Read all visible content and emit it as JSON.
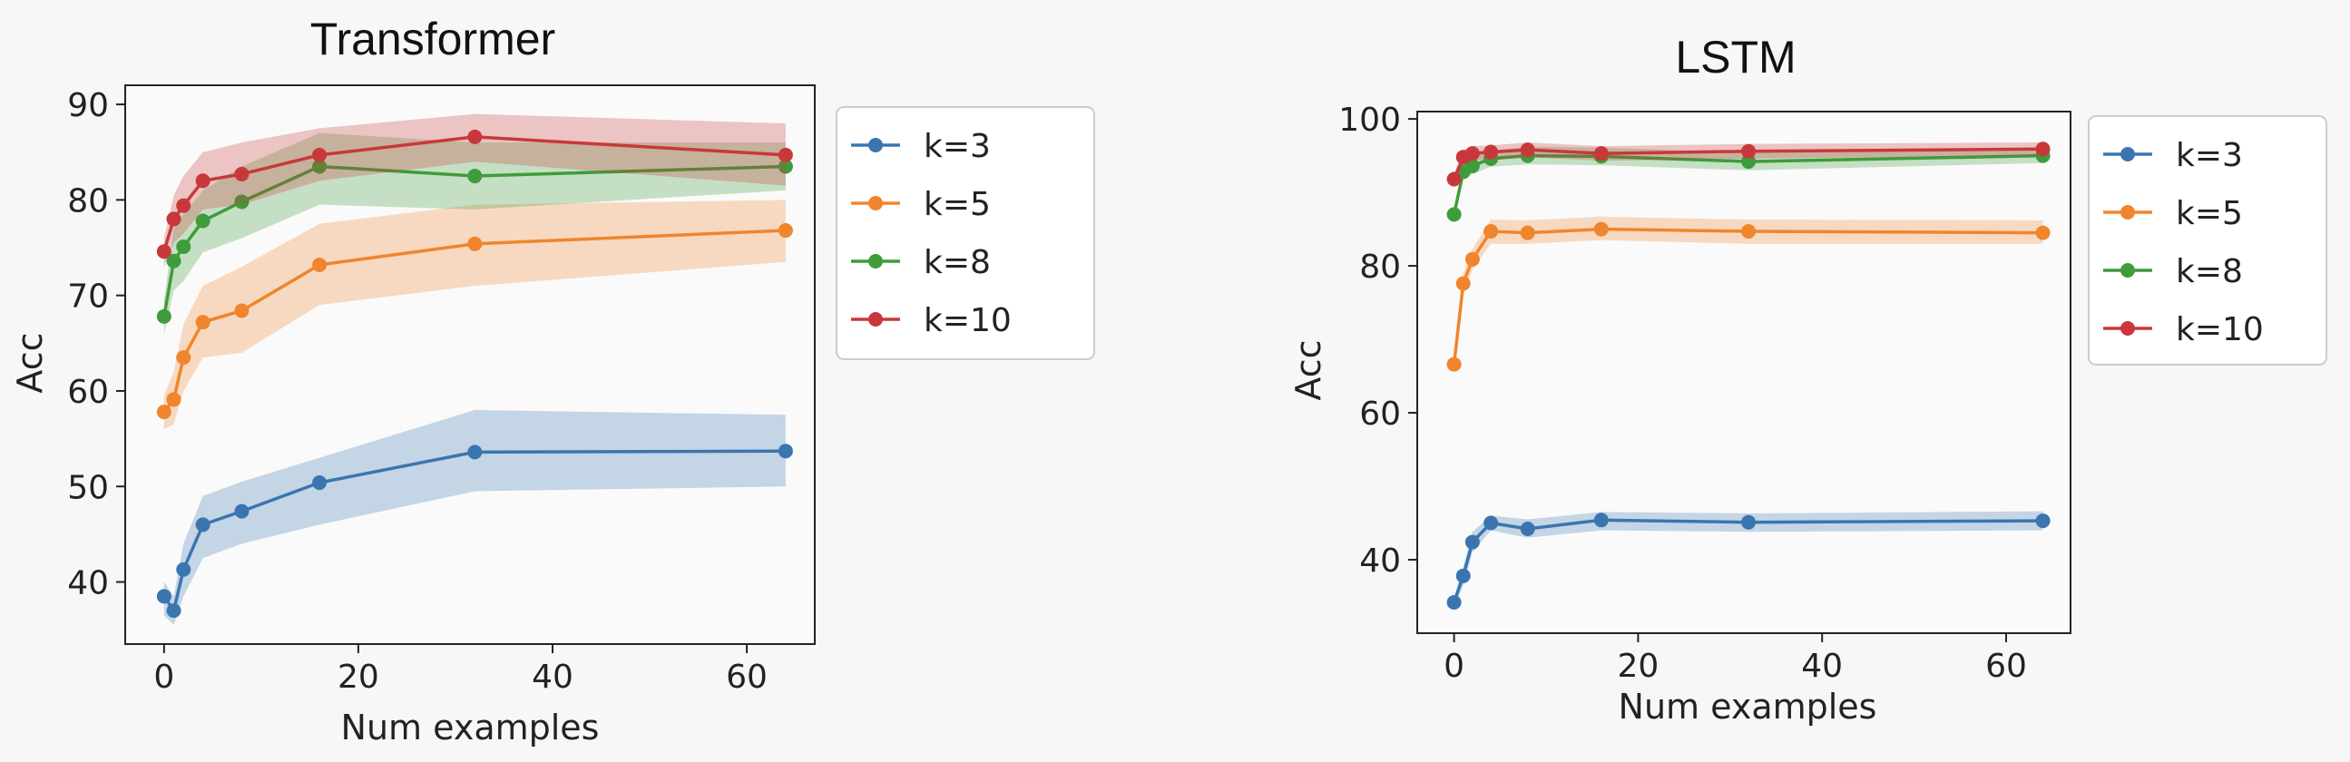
{
  "chart_data": [
    {
      "type": "line",
      "title": "Transformer",
      "xlabel": "Num examples",
      "ylabel": "Acc",
      "xlim": [
        -4,
        67
      ],
      "ylim": [
        33.5,
        92
      ],
      "xticks": [
        0,
        20,
        40,
        60
      ],
      "yticks": [
        40,
        50,
        60,
        70,
        80,
        90
      ],
      "legend": "outside-right",
      "grid": false,
      "x": [
        0,
        1,
        2,
        4,
        8,
        16,
        32,
        64
      ],
      "series": [
        {
          "name": "k=3",
          "color": "#3a75b0",
          "values": [
            38.5,
            37.0,
            41.3,
            46.0,
            47.4,
            50.4,
            53.6,
            53.7
          ],
          "lower": [
            36.5,
            35.5,
            38.5,
            42.5,
            44.0,
            46.0,
            49.5,
            50.0
          ],
          "upper": [
            40.0,
            38.5,
            44.0,
            49.0,
            50.5,
            53.0,
            58.0,
            57.5
          ]
        },
        {
          "name": "k=5",
          "color": "#f0852d",
          "values": [
            57.8,
            59.1,
            63.5,
            67.2,
            68.4,
            73.2,
            75.4,
            76.8
          ],
          "lower": [
            56.0,
            56.5,
            60.0,
            63.5,
            64.0,
            69.0,
            71.0,
            73.5
          ],
          "upper": [
            59.5,
            62.0,
            67.0,
            71.0,
            73.0,
            77.5,
            79.5,
            80.0
          ]
        },
        {
          "name": "k=8",
          "color": "#3e9c3a",
          "values": [
            67.8,
            73.6,
            75.1,
            77.8,
            79.8,
            83.5,
            82.5,
            83.5
          ],
          "lower": [
            66.0,
            70.5,
            71.5,
            74.5,
            76.0,
            79.5,
            79.0,
            81.0
          ],
          "upper": [
            69.5,
            77.0,
            78.5,
            81.0,
            83.5,
            87.0,
            86.0,
            86.0
          ]
        },
        {
          "name": "k=10",
          "color": "#c8383a",
          "values": [
            74.6,
            78.0,
            79.4,
            82.0,
            82.7,
            84.7,
            86.6,
            84.7
          ],
          "lower": [
            73.0,
            75.5,
            76.5,
            79.0,
            79.5,
            82.0,
            84.0,
            81.5
          ],
          "upper": [
            76.0,
            80.5,
            82.5,
            85.0,
            86.0,
            87.5,
            89.0,
            88.0
          ]
        }
      ]
    },
    {
      "type": "line",
      "title": "LSTM",
      "xlabel": "Num examples",
      "ylabel": "Acc",
      "xlim": [
        -4,
        67
      ],
      "ylim": [
        30,
        101
      ],
      "xticks": [
        0,
        20,
        40,
        60
      ],
      "yticks": [
        40,
        60,
        80,
        100
      ],
      "legend": "outside-right",
      "grid": false,
      "x": [
        0,
        1,
        2,
        4,
        8,
        16,
        32,
        64
      ],
      "series": [
        {
          "name": "k=3",
          "color": "#3a75b0",
          "values": [
            34.2,
            37.8,
            42.4,
            45.0,
            44.2,
            45.4,
            45.1,
            45.3
          ],
          "lower": [
            33.5,
            36.5,
            41.0,
            44.0,
            43.0,
            44.0,
            43.8,
            44.0
          ],
          "upper": [
            35.0,
            39.0,
            43.8,
            46.0,
            45.5,
            46.5,
            46.3,
            46.6
          ]
        },
        {
          "name": "k=5",
          "color": "#f0852d",
          "values": [
            66.6,
            77.6,
            80.9,
            84.7,
            84.5,
            85.0,
            84.7,
            84.5
          ],
          "lower": [
            66.0,
            76.0,
            79.5,
            83.0,
            83.0,
            83.5,
            83.0,
            83.0
          ],
          "upper": [
            67.2,
            79.0,
            82.3,
            86.3,
            86.2,
            86.7,
            86.3,
            86.2
          ]
        },
        {
          "name": "k=8",
          "color": "#3e9c3a",
          "values": [
            87.0,
            92.8,
            93.6,
            94.6,
            95.0,
            94.9,
            94.2,
            95.0
          ],
          "lower": [
            86.3,
            91.8,
            92.5,
            93.5,
            93.8,
            93.7,
            93.0,
            94.0
          ],
          "upper": [
            87.7,
            93.8,
            94.7,
            95.7,
            96.2,
            96.1,
            95.4,
            96.0
          ]
        },
        {
          "name": "k=10",
          "color": "#c8383a",
          "values": [
            91.8,
            94.8,
            95.3,
            95.5,
            95.8,
            95.3,
            95.6,
            95.9
          ],
          "lower": [
            91.0,
            93.8,
            94.3,
            94.6,
            94.8,
            94.3,
            94.6,
            95.0
          ],
          "upper": [
            92.6,
            95.8,
            96.3,
            96.4,
            96.8,
            96.3,
            96.6,
            96.8
          ]
        }
      ]
    }
  ]
}
